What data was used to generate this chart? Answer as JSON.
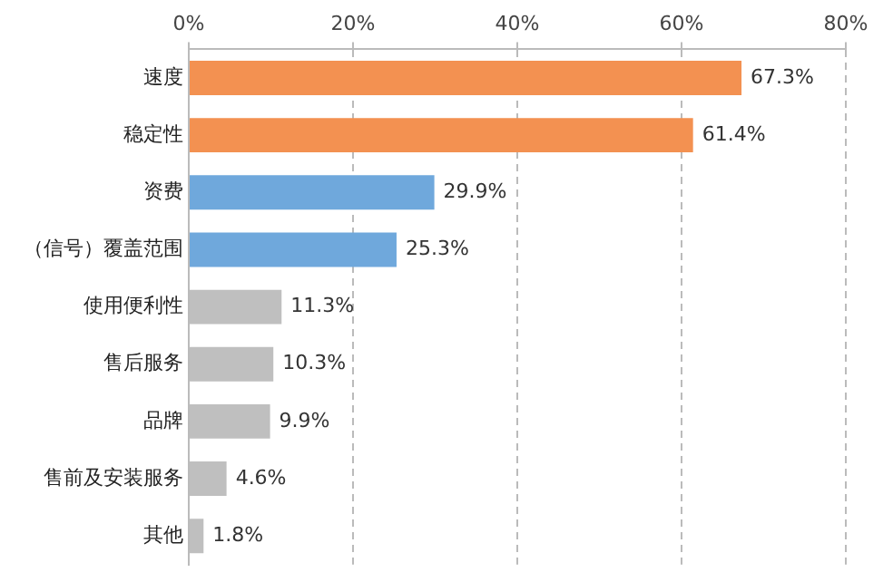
{
  "chart_data": {
    "type": "bar",
    "orientation": "horizontal",
    "categories": [
      "速度",
      "稳定性",
      "资费",
      "（信号）覆盖范围",
      "使用便利性",
      "售后服务",
      "品牌",
      "售前及安装服务",
      "其他"
    ],
    "values": [
      67.3,
      61.4,
      29.9,
      25.3,
      11.3,
      10.3,
      9.9,
      4.6,
      1.8
    ],
    "colors": [
      "#f39151",
      "#f39151",
      "#6fa8dc",
      "#6fa8dc",
      "#bfbfbf",
      "#bfbfbf",
      "#bfbfbf",
      "#bfbfbf",
      "#bfbfbf"
    ],
    "value_labels": [
      "67.3%",
      "61.4%",
      "29.9%",
      "25.3%",
      "11.3%",
      "10.3%",
      "9.9%",
      "4.6%",
      "1.8%"
    ],
    "xlim": [
      0,
      80
    ],
    "xticks": [
      {
        "value": 0,
        "label": "0%"
      },
      {
        "value": 20,
        "label": "20%"
      },
      {
        "value": 40,
        "label": "40%"
      },
      {
        "value": 60,
        "label": "60%"
      },
      {
        "value": 80,
        "label": "80%"
      }
    ],
    "grid": "x",
    "legend": false
  }
}
